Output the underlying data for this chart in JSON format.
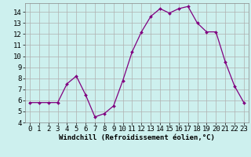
{
  "x": [
    0,
    1,
    2,
    3,
    4,
    5,
    6,
    7,
    8,
    9,
    10,
    11,
    12,
    13,
    14,
    15,
    16,
    17,
    18,
    19,
    20,
    21,
    22,
    23
  ],
  "y": [
    5.8,
    5.8,
    5.8,
    5.8,
    7.5,
    8.2,
    6.5,
    4.5,
    4.8,
    5.5,
    7.8,
    10.4,
    12.2,
    13.6,
    14.3,
    13.9,
    14.3,
    14.5,
    13.0,
    12.2,
    12.2,
    9.5,
    7.3,
    5.8
  ],
  "line_color": "#800080",
  "marker": "D",
  "marker_size": 2.0,
  "background_color": "#cdf0ee",
  "grid_color": "#b0b0b0",
  "xlabel": "Windchill (Refroidissement éolien,°C)",
  "xlabel_fontsize": 6.5,
  "tick_fontsize": 6.5,
  "ylim": [
    4,
    14.8
  ],
  "xlim": [
    -0.5,
    23.5
  ],
  "yticks": [
    4,
    5,
    6,
    7,
    8,
    9,
    10,
    11,
    12,
    13,
    14
  ],
  "xticks": [
    0,
    1,
    2,
    3,
    4,
    5,
    6,
    7,
    8,
    9,
    10,
    11,
    12,
    13,
    14,
    15,
    16,
    17,
    18,
    19,
    20,
    21,
    22,
    23
  ]
}
